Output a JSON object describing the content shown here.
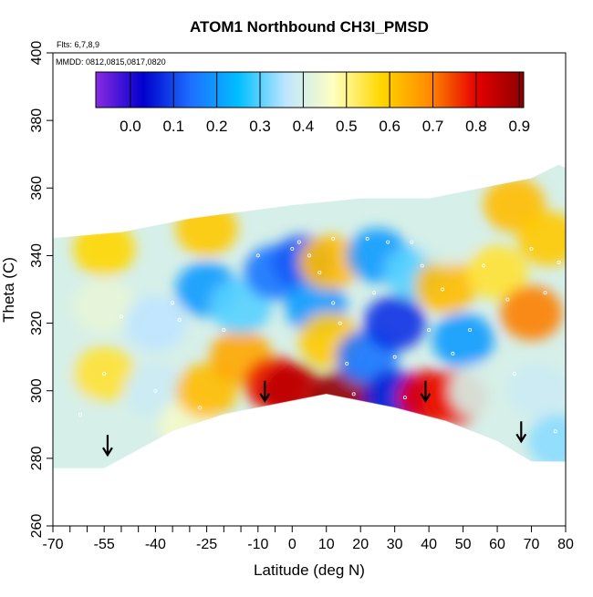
{
  "chart_data": {
    "type": "heatmap",
    "title": "ATOM1 Northbound CH3I_PMSD",
    "flights_note": "Flts: 6,7,8,9",
    "dates_note": "MMDD: 0812,0815,0817,0820",
    "xlabel": "Latitude (deg N)",
    "ylabel": "Theta (C)",
    "xlim": [
      -70,
      80
    ],
    "ylim": [
      260,
      400
    ],
    "x_ticks": [
      -70,
      -55,
      -40,
      -25,
      -10,
      0,
      10,
      20,
      30,
      40,
      50,
      60,
      70,
      80
    ],
    "x_tick_labels": [
      "-70",
      "-55",
      "-40",
      "-25",
      "-10",
      "0",
      "10",
      "20",
      "30",
      "40",
      "50",
      "60",
      "70",
      "80"
    ],
    "x_minor_ticks": [
      -65,
      -60,
      -50,
      -45,
      -35,
      -30,
      -20,
      -15,
      -5
    ],
    "y_ticks": [
      260,
      280,
      300,
      320,
      340,
      360,
      380,
      400
    ],
    "y_tick_labels": [
      "260",
      "280",
      "300",
      "320",
      "340",
      "360",
      "380",
      "400"
    ],
    "colorbar": {
      "ticks": [
        0.0,
        0.1,
        0.2,
        0.3,
        0.4,
        0.5,
        0.6,
        0.7,
        0.8,
        0.9
      ],
      "tick_labels": [
        "0.0",
        "0.1",
        "0.2",
        "0.3",
        "0.4",
        "0.5",
        "0.6",
        "0.7",
        "0.8",
        "0.9"
      ],
      "range": [
        -0.08,
        0.91
      ],
      "colors": [
        "#8a2be2",
        "#0000cd",
        "#1e6fff",
        "#00bfff",
        "#bfe6ff",
        "#ffffc0",
        "#ffd700",
        "#ff8c00",
        "#e60000",
        "#8b0000"
      ]
    },
    "tropopause_arrows_lat": [
      -54,
      -8,
      39,
      67
    ],
    "tropopause_arrows_theta": [
      281,
      297,
      297,
      285
    ],
    "region": {
      "top": [
        [
          -73,
          345
        ],
        [
          -50,
          347
        ],
        [
          -30,
          351
        ],
        [
          0,
          355
        ],
        [
          20,
          357
        ],
        [
          40,
          357
        ],
        [
          55,
          360
        ],
        [
          70,
          363
        ],
        [
          78,
          367
        ],
        [
          80,
          366
        ]
      ],
      "bottom": [
        [
          80,
          279
        ],
        [
          70,
          279
        ],
        [
          60,
          285
        ],
        [
          45,
          291
        ],
        [
          30,
          295
        ],
        [
          10,
          299
        ],
        [
          0,
          297
        ],
        [
          -20,
          293
        ],
        [
          -35,
          288
        ],
        [
          -55,
          277
        ],
        [
          -70,
          277
        ],
        [
          -73,
          280
        ]
      ]
    },
    "field_cells": [
      {
        "lat": -65,
        "theta": 300,
        "value": 0.4
      },
      {
        "lat": -55,
        "theta": 305,
        "value": 0.55
      },
      {
        "lat": -55,
        "theta": 325,
        "value": 0.43
      },
      {
        "lat": -55,
        "theta": 342,
        "value": 0.58
      },
      {
        "lat": -40,
        "theta": 300,
        "value": 0.38
      },
      {
        "lat": -40,
        "theta": 320,
        "value": 0.36
      },
      {
        "lat": -30,
        "theta": 290,
        "value": 0.45
      },
      {
        "lat": -25,
        "theta": 300,
        "value": 0.62
      },
      {
        "lat": -25,
        "theta": 330,
        "value": 0.2
      },
      {
        "lat": -25,
        "theta": 348,
        "value": 0.6
      },
      {
        "lat": -15,
        "theta": 310,
        "value": 0.65
      },
      {
        "lat": -15,
        "theta": 325,
        "value": 0.3
      },
      {
        "lat": -5,
        "theta": 302,
        "value": 0.78
      },
      {
        "lat": -5,
        "theta": 335,
        "value": 0.15
      },
      {
        "lat": 0,
        "theta": 300,
        "value": 0.85
      },
      {
        "lat": 3,
        "theta": 338,
        "value": 0.12
      },
      {
        "lat": 7,
        "theta": 325,
        "value": 0.2
      },
      {
        "lat": 11,
        "theta": 338,
        "value": 0.62
      },
      {
        "lat": 11,
        "theta": 315,
        "value": 0.6
      },
      {
        "lat": 15,
        "theta": 298,
        "value": 0.9
      },
      {
        "lat": 22,
        "theta": 310,
        "value": 0.15
      },
      {
        "lat": 25,
        "theta": 340,
        "value": 0.2
      },
      {
        "lat": 30,
        "theta": 298,
        "value": 0.05
      },
      {
        "lat": 30,
        "theta": 320,
        "value": 0.08
      },
      {
        "lat": 36,
        "theta": 335,
        "value": 0.3
      },
      {
        "lat": 40,
        "theta": 298,
        "value": 0.8
      },
      {
        "lat": 45,
        "theta": 331,
        "value": 0.62
      },
      {
        "lat": 45,
        "theta": 345,
        "value": 0.4
      },
      {
        "lat": 48,
        "theta": 298,
        "value": 0.78
      },
      {
        "lat": 50,
        "theta": 315,
        "value": 0.2
      },
      {
        "lat": 55,
        "theta": 300,
        "value": 0.4
      },
      {
        "lat": 60,
        "theta": 335,
        "value": 0.55
      },
      {
        "lat": 65,
        "theta": 355,
        "value": 0.62
      },
      {
        "lat": 70,
        "theta": 323,
        "value": 0.7
      },
      {
        "lat": 72,
        "theta": 300,
        "value": 0.38
      },
      {
        "lat": 75,
        "theta": 345,
        "value": 0.6
      },
      {
        "lat": 78,
        "theta": 285,
        "value": 0.33
      }
    ],
    "samples": [
      [
        -62,
        293
      ],
      [
        -55,
        305
      ],
      [
        -50,
        322
      ],
      [
        -40,
        300
      ],
      [
        -35,
        326
      ],
      [
        -33,
        321
      ],
      [
        -27,
        295
      ],
      [
        -20,
        318
      ],
      [
        -10,
        340
      ],
      [
        0,
        342
      ],
      [
        2,
        344
      ],
      [
        5,
        340
      ],
      [
        8,
        335
      ],
      [
        12,
        345
      ],
      [
        12,
        326
      ],
      [
        14,
        320
      ],
      [
        16,
        308
      ],
      [
        18,
        299
      ],
      [
        22,
        345
      ],
      [
        24,
        329
      ],
      [
        28,
        344
      ],
      [
        30,
        310
      ],
      [
        33,
        298
      ],
      [
        35,
        344
      ],
      [
        38,
        337
      ],
      [
        40,
        318
      ],
      [
        44,
        330
      ],
      [
        47,
        311
      ],
      [
        52,
        318
      ],
      [
        56,
        337
      ],
      [
        63,
        327
      ],
      [
        65,
        305
      ],
      [
        70,
        342
      ],
      [
        74,
        329
      ],
      [
        77,
        288
      ],
      [
        78,
        338
      ]
    ]
  }
}
